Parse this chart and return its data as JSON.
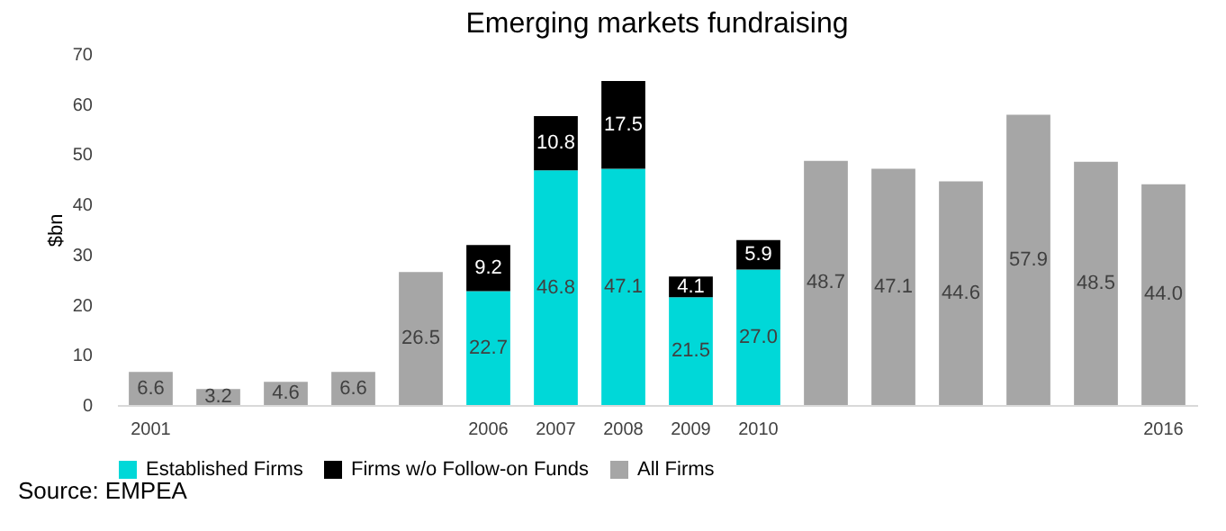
{
  "chart_data": {
    "type": "bar",
    "title": "Emerging markets fundraising",
    "ylabel": "$bn",
    "stacked": true,
    "legend": "bottom",
    "grid": false,
    "categories": [
      "2001",
      null,
      null,
      null,
      null,
      "2006",
      "2007",
      "2008",
      "2009",
      "2010",
      null,
      null,
      null,
      null,
      null,
      "2016"
    ],
    "series": [
      {
        "name": "Established Firms",
        "color": "#00d8d8",
        "values": [
          null,
          null,
          null,
          null,
          null,
          22.7,
          46.8,
          47.1,
          21.5,
          27.0,
          null,
          null,
          null,
          null,
          null,
          null
        ],
        "value_labels": [
          null,
          null,
          null,
          null,
          null,
          "22.7",
          "46.8",
          "47.1",
          "21.5",
          "27.0",
          null,
          null,
          null,
          null,
          null,
          null
        ]
      },
      {
        "name": "Firms w/o Follow-on Funds",
        "color": "#000000",
        "values": [
          null,
          null,
          null,
          null,
          null,
          9.2,
          10.8,
          17.5,
          4.1,
          5.9,
          null,
          null,
          null,
          null,
          null,
          null
        ],
        "value_labels": [
          null,
          null,
          null,
          null,
          null,
          "9.2",
          "10.8",
          "17.5",
          "4.1",
          "5.9",
          null,
          null,
          null,
          null,
          null,
          null
        ]
      },
      {
        "name": "All Firms",
        "color": "#a6a6a6",
        "values": [
          6.6,
          3.2,
          4.6,
          6.6,
          26.5,
          null,
          null,
          null,
          null,
          null,
          48.7,
          47.1,
          44.6,
          57.9,
          48.5,
          44.0
        ],
        "value_labels": [
          "6.6",
          "3.2",
          "4.6",
          "6.6",
          "26.5",
          null,
          null,
          null,
          null,
          null,
          "48.7",
          "47.1",
          "44.6",
          "57.9",
          "48.5",
          "44.0"
        ]
      }
    ],
    "ylim": [
      0,
      70
    ],
    "yticks": [
      0,
      10,
      20,
      30,
      40,
      50,
      60,
      70
    ],
    "annotations": [
      "Source: EMPEA"
    ]
  }
}
